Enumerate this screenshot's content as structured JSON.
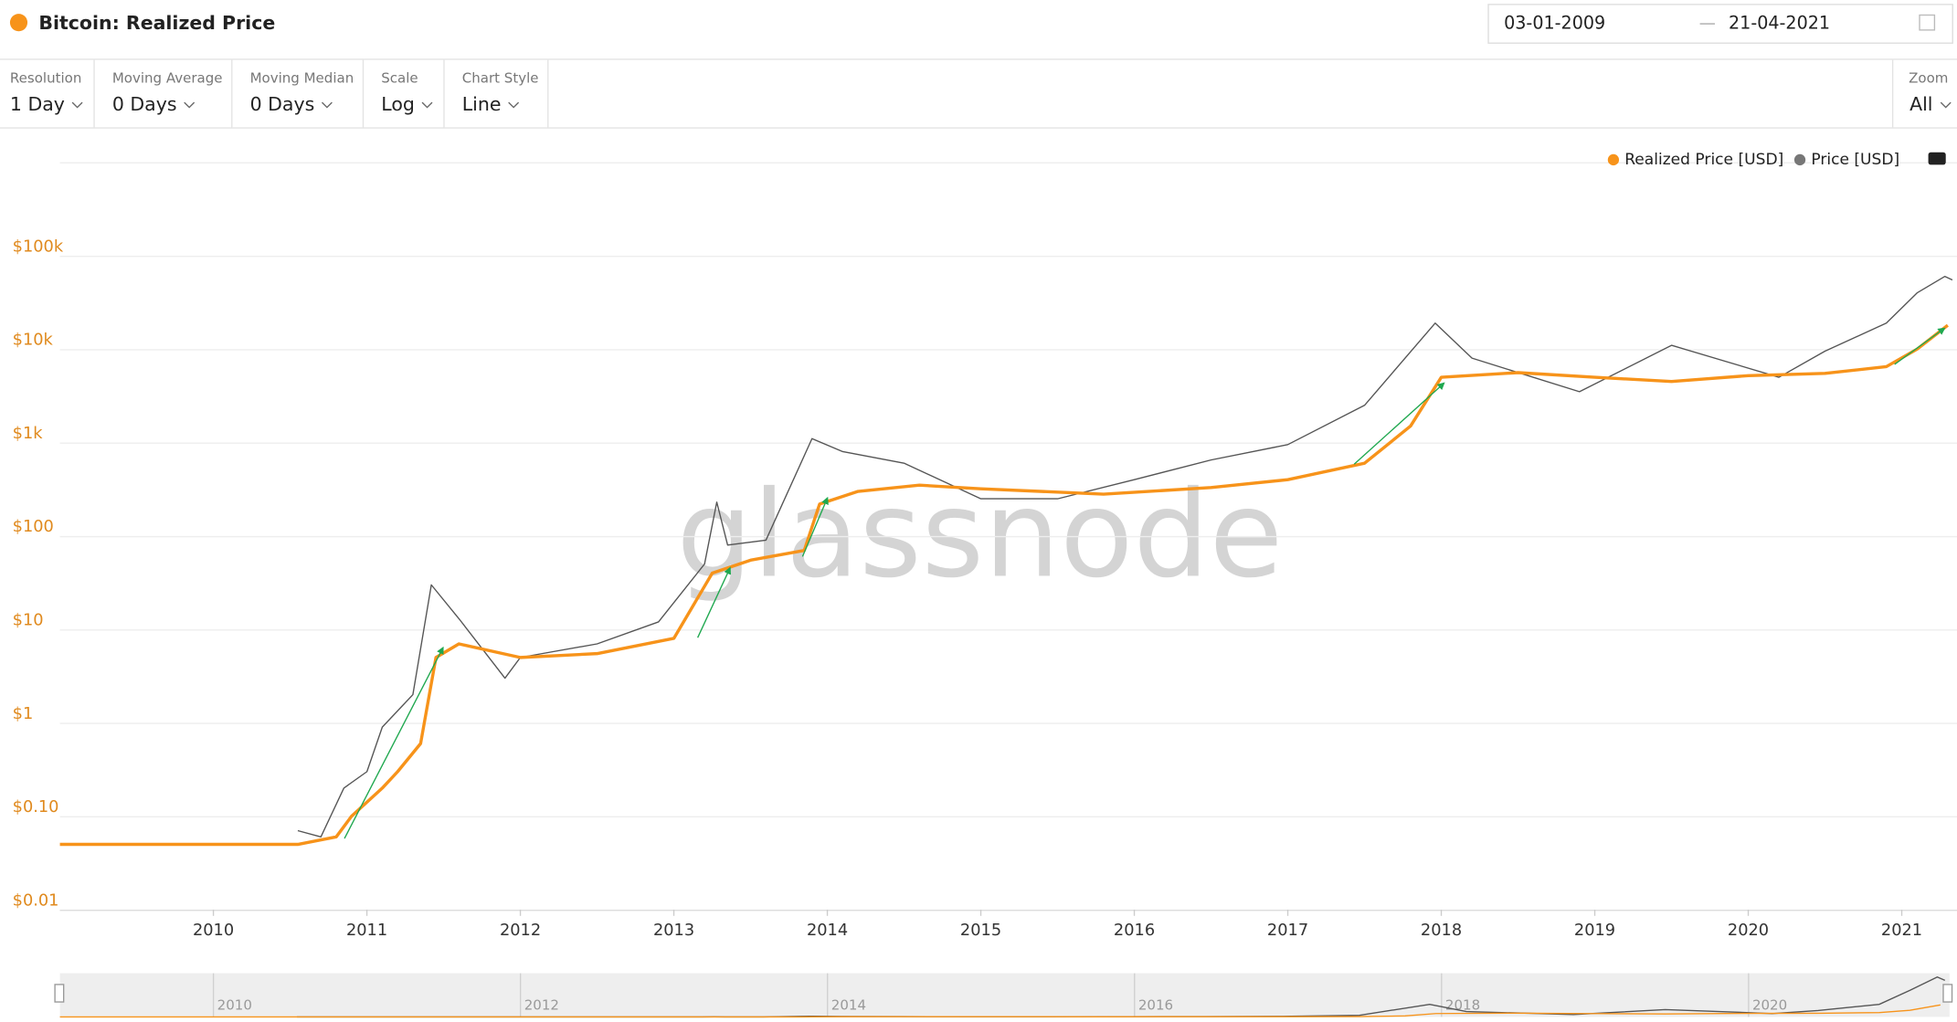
{
  "header": {
    "title": "Bitcoin: Realized Price",
    "date_from": "03-01-2009",
    "date_to": "21-04-2021"
  },
  "controls": [
    {
      "label": "Resolution",
      "value": "1 Day"
    },
    {
      "label": "Moving Average",
      "value": "0 Days"
    },
    {
      "label": "Moving Median",
      "value": "0 Days"
    },
    {
      "label": "Scale",
      "value": "Log"
    },
    {
      "label": "Chart Style",
      "value": "Line"
    }
  ],
  "zoom": {
    "label": "Zoom",
    "value": "All"
  },
  "watermark": "glassnode",
  "navigator": {
    "labels": [
      "2010",
      "2012",
      "2014",
      "2016",
      "2018",
      "2020"
    ]
  },
  "chart_data": {
    "type": "line",
    "log_scale": true,
    "grid": true,
    "legend": "top-right",
    "xlim": [
      2009,
      2021.36
    ],
    "xticks": [
      2010,
      2011,
      2012,
      2013,
      2014,
      2015,
      2016,
      2017,
      2018,
      2019,
      2020,
      2021
    ],
    "ylim": [
      0.01,
      1000000
    ],
    "yticks": [
      {
        "value": 0.01,
        "label": "$0.01"
      },
      {
        "value": 0.1,
        "label": "$0.10"
      },
      {
        "value": 1,
        "label": "$1"
      },
      {
        "value": 10,
        "label": "$10"
      },
      {
        "value": 100,
        "label": "$100"
      },
      {
        "value": 1000,
        "label": "$1k"
      },
      {
        "value": 10000,
        "label": "$10k"
      },
      {
        "value": 100000,
        "label": "$100k"
      }
    ],
    "series": [
      {
        "name": "Realized Price [USD]",
        "color": "#f7931a",
        "x": [
          2009,
          2010.55,
          2010.8,
          2010.9,
          2011.1,
          2011.2,
          2011.35,
          2011.45,
          2011.6,
          2012.0,
          2012.5,
          2013.0,
          2013.25,
          2013.5,
          2013.85,
          2013.95,
          2014.2,
          2014.6,
          2015.0,
          2015.8,
          2016.5,
          2017.0,
          2017.5,
          2017.8,
          2018.0,
          2018.5,
          2019.0,
          2019.5,
          2020.0,
          2020.5,
          2020.9,
          2021.1,
          2021.3
        ],
        "values": [
          0.05,
          0.05,
          0.06,
          0.1,
          0.2,
          0.3,
          0.6,
          5,
          7,
          5,
          5.5,
          8,
          40,
          55,
          70,
          220,
          300,
          350,
          320,
          280,
          330,
          400,
          600,
          1500,
          5000,
          5600,
          5000,
          4500,
          5200,
          5500,
          6500,
          10000,
          18000
        ]
      },
      {
        "name": "Price [USD]",
        "color": "#555555",
        "x": [
          2010.55,
          2010.7,
          2010.85,
          2011.0,
          2011.1,
          2011.3,
          2011.42,
          2011.6,
          2011.9,
          2012.0,
          2012.5,
          2012.9,
          2013.2,
          2013.28,
          2013.35,
          2013.6,
          2013.9,
          2014.1,
          2014.5,
          2015.0,
          2015.5,
          2016.0,
          2016.5,
          2017.0,
          2017.5,
          2017.96,
          2018.2,
          2018.9,
          2019.5,
          2020.2,
          2020.5,
          2020.9,
          2021.1,
          2021.28,
          2021.33
        ],
        "values": [
          0.07,
          0.06,
          0.2,
          0.3,
          0.9,
          2,
          30,
          13,
          3,
          5,
          7,
          12,
          50,
          230,
          80,
          90,
          1100,
          800,
          600,
          250,
          250,
          400,
          650,
          950,
          2500,
          19000,
          8000,
          3500,
          11000,
          5000,
          9500,
          19000,
          40000,
          60000,
          55000
        ]
      }
    ]
  }
}
